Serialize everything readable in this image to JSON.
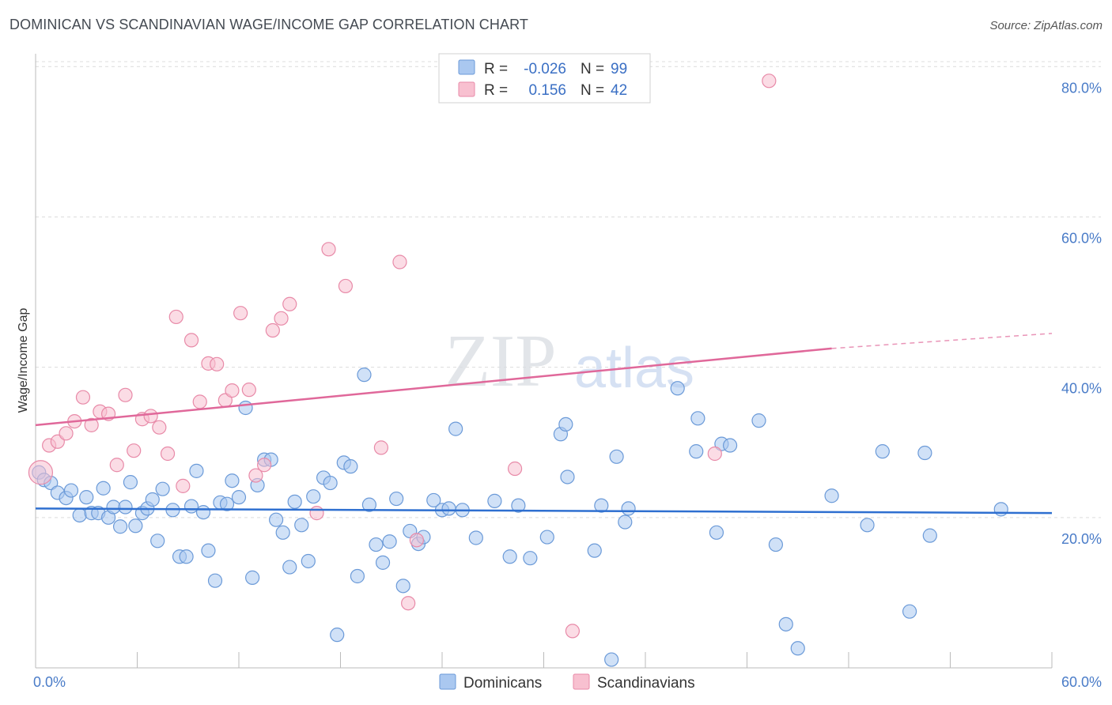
{
  "title": "DOMINICAN VS SCANDINAVIAN WAGE/INCOME GAP CORRELATION CHART",
  "source": "Source: ZipAtlas.com",
  "watermark": {
    "zip": "ZIP",
    "atlas": "atlas"
  },
  "colors": {
    "dominicans_fill": "#aac8f0",
    "dominicans_stroke": "#6b9ad8",
    "dominicans_line": "#2e6fd0",
    "scandinavians_fill": "#f8c0d0",
    "scandinavians_stroke": "#e88aa8",
    "scandinavians_line": "#e0689a",
    "tick_text": "#4a7cc8",
    "grid": "#dcdcdc"
  },
  "legend": {
    "rows": [
      {
        "r_label": "R =",
        "r_value": "-0.026",
        "n_label": "N =",
        "n_value": "99"
      },
      {
        "r_label": "R =",
        "r_value": "0.156",
        "n_label": "N =",
        "n_value": "42"
      }
    ]
  },
  "chart_data": {
    "type": "scatter",
    "title": "DOMINICAN VS SCANDINAVIAN WAGE/INCOME GAP CORRELATION CHART",
    "xlabel": "",
    "ylabel": "Wage/Income Gap",
    "xlim": [
      0,
      60
    ],
    "ylim": [
      0,
      81.5
    ],
    "x_ticks": [
      {
        "value": 0,
        "label": "0.0%"
      },
      {
        "value": 60,
        "label": "60.0%"
      }
    ],
    "y_ticks": [
      {
        "value": 20,
        "label": "20.0%"
      },
      {
        "value": 40,
        "label": "40.0%"
      },
      {
        "value": 60,
        "label": "60.0%"
      },
      {
        "value": 80,
        "label": "80.0%"
      }
    ],
    "grid": true,
    "legend_placement": "top-center",
    "series": [
      {
        "name": "Dominicans",
        "r": -0.026,
        "n": 99,
        "trend": {
          "x": [
            0,
            60
          ],
          "y": [
            21.2,
            20.6
          ]
        },
        "points": [
          [
            0.2,
            26.0
          ],
          [
            0.5,
            25.0
          ],
          [
            0.9,
            24.6
          ],
          [
            1.3,
            23.3
          ],
          [
            1.8,
            22.6
          ],
          [
            2.1,
            23.6
          ],
          [
            2.6,
            20.3
          ],
          [
            3.0,
            22.7
          ],
          [
            3.3,
            20.6
          ],
          [
            3.7,
            20.6
          ],
          [
            4.0,
            23.9
          ],
          [
            4.3,
            20.0
          ],
          [
            4.6,
            21.4
          ],
          [
            5.0,
            18.8
          ],
          [
            5.3,
            21.4
          ],
          [
            5.6,
            24.7
          ],
          [
            5.9,
            18.9
          ],
          [
            6.3,
            20.6
          ],
          [
            6.6,
            21.2
          ],
          [
            6.9,
            22.4
          ],
          [
            7.2,
            16.9
          ],
          [
            7.5,
            23.8
          ],
          [
            8.1,
            21.0
          ],
          [
            8.5,
            14.8
          ],
          [
            8.9,
            14.8
          ],
          [
            9.2,
            21.5
          ],
          [
            9.5,
            26.2
          ],
          [
            9.9,
            20.7
          ],
          [
            10.2,
            15.6
          ],
          [
            10.6,
            11.6
          ],
          [
            10.9,
            22.0
          ],
          [
            11.3,
            21.8
          ],
          [
            11.6,
            24.9
          ],
          [
            12.0,
            22.7
          ],
          [
            12.4,
            34.6
          ],
          [
            12.8,
            12.0
          ],
          [
            13.1,
            24.3
          ],
          [
            13.5,
            27.7
          ],
          [
            13.9,
            27.7
          ],
          [
            14.2,
            19.7
          ],
          [
            14.6,
            18.0
          ],
          [
            15.0,
            13.4
          ],
          [
            15.3,
            22.1
          ],
          [
            15.7,
            19.0
          ],
          [
            16.1,
            14.2
          ],
          [
            16.4,
            22.8
          ],
          [
            17.0,
            25.3
          ],
          [
            17.4,
            24.6
          ],
          [
            17.8,
            4.4
          ],
          [
            18.2,
            27.3
          ],
          [
            18.6,
            26.8
          ],
          [
            19.0,
            12.2
          ],
          [
            19.4,
            39.0
          ],
          [
            19.7,
            21.7
          ],
          [
            20.1,
            16.4
          ],
          [
            20.5,
            14.0
          ],
          [
            20.9,
            16.8
          ],
          [
            21.3,
            22.5
          ],
          [
            21.7,
            10.9
          ],
          [
            22.1,
            18.2
          ],
          [
            22.6,
            16.5
          ],
          [
            22.9,
            17.4
          ],
          [
            23.5,
            22.3
          ],
          [
            24.0,
            21.0
          ],
          [
            24.4,
            21.2
          ],
          [
            24.8,
            31.8
          ],
          [
            25.2,
            21.0
          ],
          [
            26.0,
            17.3
          ],
          [
            27.1,
            22.2
          ],
          [
            28.0,
            14.8
          ],
          [
            28.5,
            21.6
          ],
          [
            29.2,
            14.6
          ],
          [
            30.2,
            17.4
          ],
          [
            31.0,
            31.1
          ],
          [
            31.3,
            32.4
          ],
          [
            31.4,
            25.4
          ],
          [
            33.0,
            15.6
          ],
          [
            33.4,
            21.6
          ],
          [
            34.3,
            28.1
          ],
          [
            34.8,
            19.4
          ],
          [
            35.0,
            21.2
          ],
          [
            37.9,
            37.2
          ],
          [
            39.0,
            28.8
          ],
          [
            39.1,
            33.2
          ],
          [
            40.2,
            18.0
          ],
          [
            40.5,
            29.8
          ],
          [
            41.0,
            29.6
          ],
          [
            42.7,
            32.9
          ],
          [
            43.7,
            16.4
          ],
          [
            44.3,
            5.8
          ],
          [
            45.0,
            2.6
          ],
          [
            47.0,
            22.9
          ],
          [
            49.1,
            19.0
          ],
          [
            50.0,
            28.8
          ],
          [
            51.6,
            7.5
          ],
          [
            52.5,
            28.6
          ],
          [
            52.8,
            17.6
          ],
          [
            34.0,
            1.1
          ],
          [
            57.0,
            21.1
          ]
        ]
      },
      {
        "name": "Scandinavians",
        "r": 0.156,
        "n": 42,
        "trend": {
          "x": [
            0,
            47
          ],
          "y": [
            32.3,
            42.5
          ]
        },
        "trend_dashed": {
          "x": [
            47,
            60
          ],
          "y": [
            42.5,
            44.5
          ]
        },
        "points": [
          [
            0.3,
            26.0
          ],
          [
            0.8,
            29.6
          ],
          [
            1.3,
            30.1
          ],
          [
            1.8,
            31.2
          ],
          [
            2.3,
            32.8
          ],
          [
            2.8,
            36.0
          ],
          [
            3.3,
            32.3
          ],
          [
            3.8,
            34.1
          ],
          [
            4.3,
            33.8
          ],
          [
            4.8,
            27.0
          ],
          [
            5.3,
            36.3
          ],
          [
            5.8,
            28.9
          ],
          [
            6.3,
            33.1
          ],
          [
            6.8,
            33.5
          ],
          [
            7.3,
            32.0
          ],
          [
            7.8,
            28.5
          ],
          [
            8.3,
            46.7
          ],
          [
            8.7,
            24.2
          ],
          [
            9.2,
            43.6
          ],
          [
            9.7,
            35.4
          ],
          [
            10.2,
            40.5
          ],
          [
            10.7,
            40.4
          ],
          [
            11.2,
            35.6
          ],
          [
            11.6,
            36.9
          ],
          [
            12.1,
            47.2
          ],
          [
            12.6,
            37.0
          ],
          [
            13.0,
            25.6
          ],
          [
            13.5,
            27.0
          ],
          [
            14.0,
            44.9
          ],
          [
            14.5,
            46.5
          ],
          [
            15.0,
            48.4
          ],
          [
            16.6,
            20.6
          ],
          [
            17.3,
            55.7
          ],
          [
            18.3,
            50.8
          ],
          [
            20.4,
            29.3
          ],
          [
            21.5,
            54.0
          ],
          [
            22.0,
            8.6
          ],
          [
            22.5,
            17.0
          ],
          [
            28.3,
            26.5
          ],
          [
            31.7,
            4.9
          ],
          [
            40.1,
            28.5
          ],
          [
            43.3,
            78.1
          ]
        ]
      }
    ]
  }
}
